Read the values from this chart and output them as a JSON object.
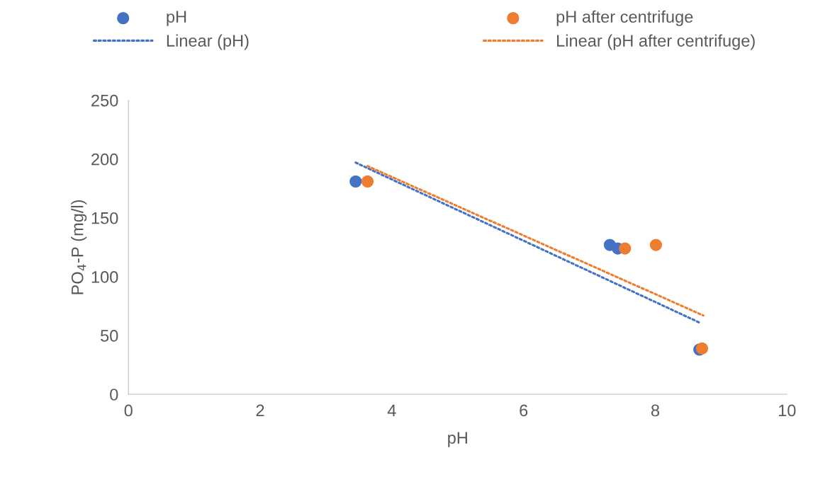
{
  "chart_data": {
    "type": "scatter",
    "xlabel": "pH",
    "ylabel": "PO$_{4}$-P (mg/l)",
    "xlim": [
      0,
      10
    ],
    "xticks": [
      0,
      2,
      4,
      6,
      8,
      10
    ],
    "ylim": [
      0,
      250
    ],
    "yticks": [
      0,
      50,
      100,
      150,
      200,
      250
    ],
    "grid": false,
    "legend": "top",
    "series": [
      {
        "name": "pH",
        "marker": "circle",
        "color": "#4472c4",
        "x": [
          3.45,
          7.31,
          7.43,
          8.67
        ],
        "values": [
          181,
          127,
          124,
          38
        ]
      },
      {
        "name": "pH after centrifuge",
        "marker": "circle",
        "color": "#ed7d31",
        "x": [
          3.63,
          7.54,
          8.01,
          8.71
        ],
        "values": [
          181,
          124,
          127,
          39
        ]
      },
      {
        "name": "Linear (pH)",
        "type": "line",
        "marker": "none",
        "line_style": "dotted",
        "color": "#4472c4",
        "x": [
          3.45,
          8.67
        ],
        "values": [
          197,
          61
        ]
      },
      {
        "name": "Linear (pH after centrifuge)",
        "type": "line",
        "marker": "none",
        "line_style": "dotted",
        "color": "#ed7d31",
        "x": [
          3.63,
          8.73
        ],
        "values": [
          194,
          67
        ]
      }
    ]
  }
}
